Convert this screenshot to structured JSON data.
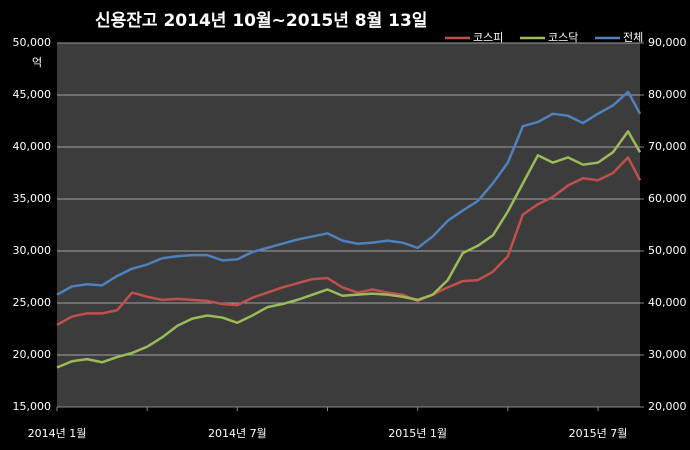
{
  "chart_data": {
    "type": "line",
    "title": "신용잔고 2014년 10월~2015년 8월 13일",
    "y_unit": "억",
    "categories": [
      "2014년 1월",
      null,
      null,
      null,
      null,
      null,
      null,
      null,
      null,
      null,
      null,
      null,
      "2014년 7월",
      null,
      null,
      null,
      null,
      null,
      null,
      null,
      null,
      null,
      null,
      null,
      "2015년 1월",
      null,
      null,
      null,
      null,
      null,
      null,
      null,
      null,
      null,
      null,
      null,
      "2015년 7월",
      null,
      null,
      null
    ],
    "series": [
      {
        "name": "코스피",
        "color": "#c0504d",
        "axis": "y",
        "values": [
          22900,
          23700,
          24000,
          24000,
          24300,
          26000,
          25600,
          25300,
          25400,
          25300,
          25200,
          24900,
          24800,
          25500,
          26000,
          26500,
          26900,
          27300,
          27400,
          26500,
          26000,
          26300,
          26000,
          25800,
          25200,
          25800,
          26500,
          27100,
          27200,
          28000,
          29500,
          33500,
          34500,
          35200,
          36300,
          37000,
          36800,
          37500,
          39000,
          36800
        ]
      },
      {
        "name": "코스닥",
        "color": "#9bbb59",
        "axis": "y",
        "values": [
          18800,
          19400,
          19600,
          19300,
          19800,
          20200,
          20800,
          21700,
          22800,
          23500,
          23800,
          23600,
          23100,
          23800,
          24600,
          24900,
          25300,
          25800,
          26300,
          25700,
          25800,
          25900,
          25800,
          25600,
          25300,
          25800,
          27200,
          29800,
          30500,
          31500,
          33800,
          36500,
          39200,
          38500,
          39000,
          38300,
          38500,
          39500,
          41500,
          39500
        ]
      },
      {
        "name": "전체",
        "color": "#4f81bd",
        "axis": "y2",
        "values": [
          41600,
          43200,
          43600,
          43400,
          45200,
          46600,
          47400,
          48600,
          49000,
          49200,
          49200,
          48200,
          48400,
          49800,
          50600,
          51400,
          52200,
          52800,
          53400,
          52000,
          51400,
          51600,
          52000,
          51600,
          50600,
          52800,
          55800,
          57800,
          59600,
          63000,
          67000,
          74000,
          74800,
          76400,
          76000,
          74600,
          76400,
          78000,
          80600,
          76400
        ]
      }
    ],
    "ylim": [
      15000,
      50000
    ],
    "yticks": [
      {
        "value": 15000,
        "label": "15,000"
      },
      {
        "value": 20000,
        "label": "20,000"
      },
      {
        "value": 25000,
        "label": "25,000"
      },
      {
        "value": 30000,
        "label": "30,000"
      },
      {
        "value": 35000,
        "label": "35,000"
      },
      {
        "value": 40000,
        "label": "40,000"
      },
      {
        "value": 45000,
        "label": "45,000"
      },
      {
        "value": 50000,
        "label": "50,000"
      }
    ],
    "y2lim": [
      20000,
      90000
    ],
    "y2ticks": [
      {
        "value": 20000,
        "label": "20,000"
      },
      {
        "value": 30000,
        "label": "30,000"
      },
      {
        "value": 40000,
        "label": "40,000"
      },
      {
        "value": 50000,
        "label": "50,000"
      },
      {
        "value": 60000,
        "label": "60,000"
      },
      {
        "value": 70000,
        "label": "70,000"
      },
      {
        "value": 80000,
        "label": "80,000"
      },
      {
        "value": 90000,
        "label": "90,000"
      }
    ],
    "grid": true,
    "legend": "top-right"
  }
}
